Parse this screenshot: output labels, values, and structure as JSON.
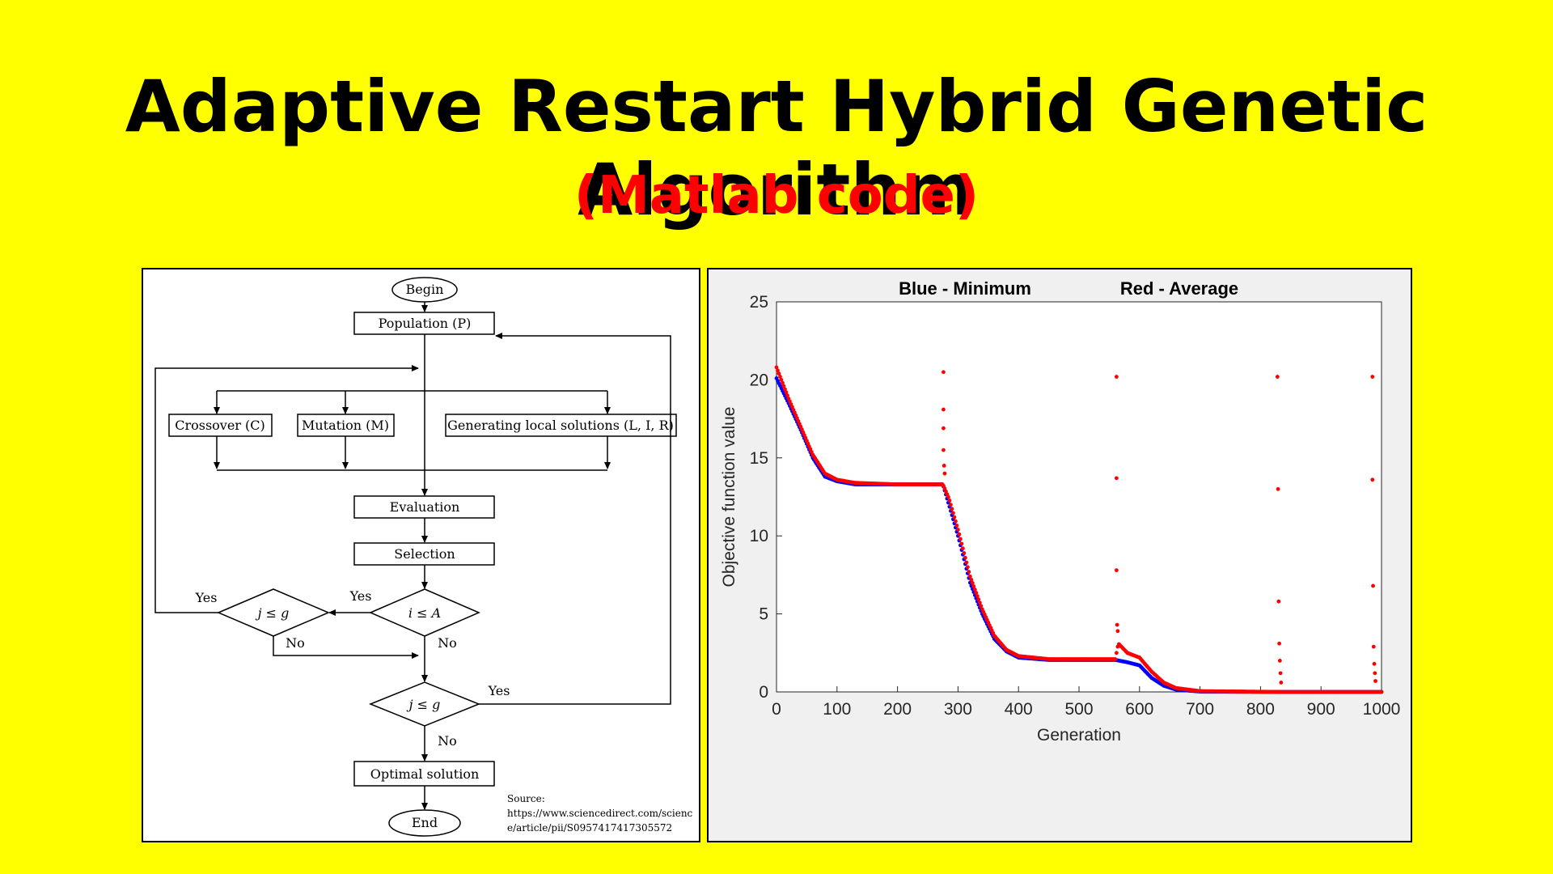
{
  "title": "Adaptive Restart Hybrid Genetic Algorithm",
  "subtitle": "(Matlab code)",
  "flowchart": {
    "begin": "Begin",
    "population": "Population (P)",
    "crossover": "Crossover (C)",
    "mutation": "Mutation (M)",
    "local": "Generating local solutions (L, I, R)",
    "evaluation": "Evaluation",
    "selection": "Selection",
    "cond_left": "j ≤ g",
    "cond_center": "i ≤ A",
    "cond_bottom": "j ≤ g",
    "yes": "Yes",
    "no": "No",
    "optimal": "Optimal solution",
    "end": "End",
    "source_lines": [
      "Source:",
      "https://www.sciencedirect.com/scienc",
      "e/article/pii/S0957417417305572"
    ]
  },
  "chart_data": {
    "type": "scatter",
    "title_left": "Blue - Minimum",
    "title_right": "Red - Average",
    "xlabel": "Generation",
    "ylabel": "Objective function value",
    "xlim": [
      0,
      1000
    ],
    "ylim": [
      0,
      25
    ],
    "xticks": [
      0,
      100,
      200,
      300,
      400,
      500,
      600,
      700,
      800,
      900,
      1000
    ],
    "yticks": [
      0,
      5,
      10,
      15,
      20,
      25
    ],
    "grid": false,
    "series": [
      {
        "name": "Minimum",
        "color": "#0000ff",
        "points": [
          [
            0,
            20.1
          ],
          [
            20,
            18.5
          ],
          [
            40,
            16.8
          ],
          [
            60,
            15.0
          ],
          [
            80,
            13.8
          ],
          [
            100,
            13.5
          ],
          [
            130,
            13.3
          ],
          [
            200,
            13.3
          ],
          [
            275,
            13.3
          ],
          [
            285,
            12.0
          ],
          [
            300,
            10.0
          ],
          [
            320,
            7.0
          ],
          [
            340,
            5.0
          ],
          [
            360,
            3.4
          ],
          [
            380,
            2.6
          ],
          [
            400,
            2.2
          ],
          [
            450,
            2.05
          ],
          [
            560,
            2.05
          ],
          [
            580,
            1.9
          ],
          [
            600,
            1.7
          ],
          [
            620,
            0.9
          ],
          [
            640,
            0.4
          ],
          [
            660,
            0.15
          ],
          [
            700,
            0.02
          ],
          [
            830,
            0.0
          ],
          [
            1000,
            0.0
          ]
        ]
      },
      {
        "name": "Average",
        "color": "#ff0000",
        "points": [
          [
            0,
            20.8
          ],
          [
            20,
            18.8
          ],
          [
            40,
            17.0
          ],
          [
            60,
            15.2
          ],
          [
            80,
            14.0
          ],
          [
            100,
            13.6
          ],
          [
            130,
            13.4
          ],
          [
            200,
            13.3
          ],
          [
            275,
            13.3
          ],
          [
            285,
            12.4
          ],
          [
            300,
            10.4
          ],
          [
            320,
            7.4
          ],
          [
            340,
            5.3
          ],
          [
            360,
            3.6
          ],
          [
            380,
            2.7
          ],
          [
            400,
            2.3
          ],
          [
            450,
            2.1
          ],
          [
            560,
            2.1
          ],
          [
            565,
            3.1
          ],
          [
            580,
            2.5
          ],
          [
            600,
            2.2
          ],
          [
            620,
            1.3
          ],
          [
            640,
            0.6
          ],
          [
            660,
            0.25
          ],
          [
            700,
            0.05
          ],
          [
            830,
            0.0
          ],
          [
            1000,
            0.0
          ]
        ],
        "restart_points": [
          [
            276,
            20.5
          ],
          [
            276,
            18.1
          ],
          [
            276,
            16.9
          ],
          [
            276,
            15.5
          ],
          [
            277,
            14.5
          ],
          [
            278,
            14.0
          ],
          [
            562,
            20.2
          ],
          [
            562,
            13.7
          ],
          [
            562,
            7.8
          ],
          [
            563,
            4.3
          ],
          [
            564,
            3.9
          ],
          [
            828,
            20.2
          ],
          [
            829,
            13.0
          ],
          [
            830,
            5.8
          ],
          [
            831,
            3.1
          ],
          [
            832,
            2.0
          ],
          [
            833,
            1.2
          ],
          [
            834,
            0.6
          ],
          [
            985,
            20.2
          ],
          [
            985,
            13.6
          ],
          [
            986,
            6.8
          ],
          [
            987,
            2.9
          ],
          [
            988,
            1.8
          ],
          [
            989,
            1.2
          ],
          [
            990,
            0.7
          ]
        ]
      }
    ]
  }
}
